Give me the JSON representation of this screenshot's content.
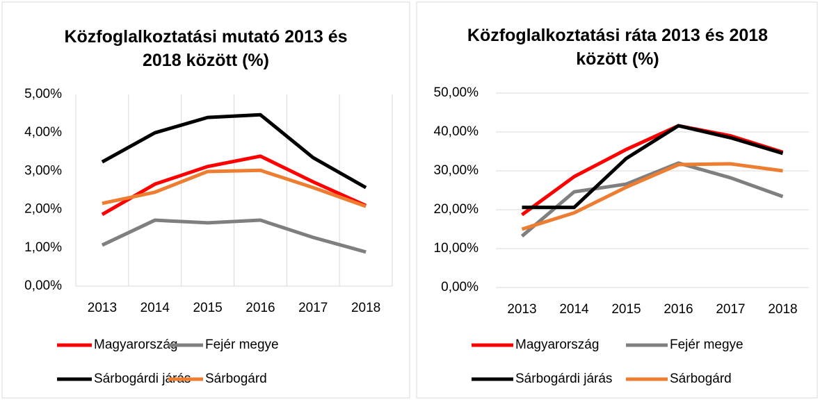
{
  "chart_data": [
    {
      "type": "line",
      "title": "Közfoglalkoztatási mutató 2013 és 2018 között (%)",
      "categories": [
        "2013",
        "2014",
        "2015",
        "2016",
        "2017",
        "2018"
      ],
      "series": [
        {
          "name": "Magyarország",
          "color": "#ff0000",
          "values": [
            1.87,
            2.66,
            3.12,
            3.39,
            2.72,
            2.1
          ]
        },
        {
          "name": "Fejér megye",
          "color": "#7f7f7f",
          "values": [
            1.07,
            1.72,
            1.65,
            1.72,
            1.27,
            0.89
          ]
        },
        {
          "name": "Sárbogárdi járás",
          "color": "#000000",
          "values": [
            3.24,
            4.0,
            4.4,
            4.47,
            3.35,
            2.57
          ]
        },
        {
          "name": "Sárbogárd",
          "color": "#ed7d31",
          "values": [
            2.16,
            2.45,
            2.99,
            3.02,
            2.57,
            2.08
          ]
        }
      ],
      "ylim": [
        0,
        5
      ],
      "yticks": [
        {
          "value": 0,
          "label": "0,00%"
        },
        {
          "value": 1,
          "label": "1,00%"
        },
        {
          "value": 2,
          "label": "2,00%"
        },
        {
          "value": 3,
          "label": "3,00%"
        },
        {
          "value": 4,
          "label": "4,00%"
        },
        {
          "value": 5,
          "label": "5,00%"
        }
      ],
      "grid": "vertical"
    },
    {
      "type": "line",
      "title": "Közfoglalkoztatási ráta 2013 és 2018 között (%)",
      "categories": [
        "2013",
        "2014",
        "2015",
        "2016",
        "2017",
        "2018"
      ],
      "series": [
        {
          "name": "Magyarország",
          "color": "#ff0000",
          "values": [
            18.7,
            28.5,
            35.5,
            41.6,
            39.0,
            34.8
          ]
        },
        {
          "name": "Fejér megye",
          "color": "#7f7f7f",
          "values": [
            13.2,
            24.6,
            26.6,
            32.0,
            28.2,
            23.4
          ]
        },
        {
          "name": "Sárbogárdi járás",
          "color": "#000000",
          "values": [
            20.6,
            20.6,
            33.2,
            41.6,
            38.5,
            34.5
          ]
        },
        {
          "name": "Sárbogárd",
          "color": "#ed7d31",
          "values": [
            15.0,
            19.2,
            25.8,
            31.6,
            31.8,
            30.0
          ]
        }
      ],
      "ylim": [
        0,
        50
      ],
      "yticks": [
        {
          "value": 0,
          "label": "0,00%"
        },
        {
          "value": 10,
          "label": "10,00%"
        },
        {
          "value": 20,
          "label": "20,00%"
        },
        {
          "value": 30,
          "label": "30,00%"
        },
        {
          "value": 40,
          "label": "40,00%"
        },
        {
          "value": 50,
          "label": "50,00%"
        }
      ],
      "grid": "horizontal"
    }
  ]
}
